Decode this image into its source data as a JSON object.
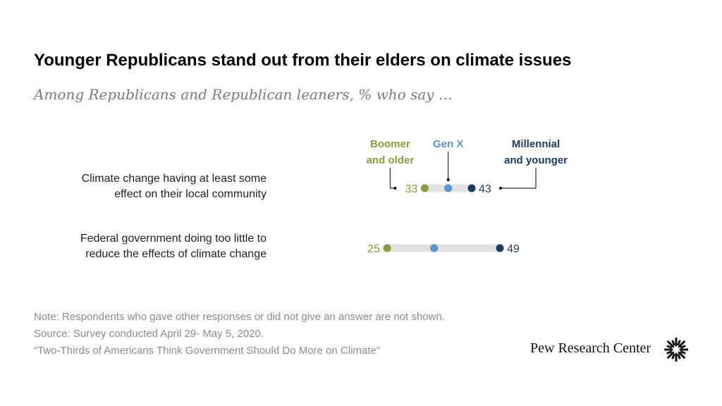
{
  "header": {
    "title": "Younger Republicans stand out from their elders on climate issues",
    "subtitle": "Among Republicans and Republican leaners, % who say …"
  },
  "chart_data": {
    "type": "dot",
    "xlim": [
      20,
      55
    ],
    "legend": [
      {
        "name": "Boomer and older",
        "lines": [
          "Boomer",
          "and older"
        ],
        "color": "#8a9a3c"
      },
      {
        "name": "Gen X",
        "lines": [
          "Gen X"
        ],
        "color": "#5b93cc"
      },
      {
        "name": "Millennial and younger",
        "lines": [
          "Millennial",
          "and younger"
        ],
        "color": "#1b3a5f"
      }
    ],
    "categories": [
      {
        "lines": [
          "Climate change having at least some",
          "effect on their local community"
        ]
      },
      {
        "lines": [
          "Federal government doing too little to",
          "reduce the effects of climate change"
        ]
      }
    ],
    "series": [
      {
        "name": "Boomer and older",
        "values": [
          33,
          25
        ],
        "labels": [
          "33",
          "25"
        ]
      },
      {
        "name": "Gen X",
        "values": [
          38,
          35
        ],
        "labels": [
          "",
          ""
        ]
      },
      {
        "name": "Millennial and younger",
        "values": [
          43,
          49
        ],
        "labels": [
          "43",
          "49"
        ]
      }
    ]
  },
  "footer": {
    "note": "Note: Respondents who gave other responses or did not give an answer are not shown.",
    "source": "Source: Survey conducted April 29- May 5, 2020.",
    "report": "“Two-Thirds of Americans Think Government Should Do More on Climate”",
    "brand": "Pew Research Center"
  },
  "colors": {
    "range_bar": "#e1e1e1",
    "leader": "#000000"
  },
  "icons": {
    "logo": "sunburst-logo-icon"
  }
}
